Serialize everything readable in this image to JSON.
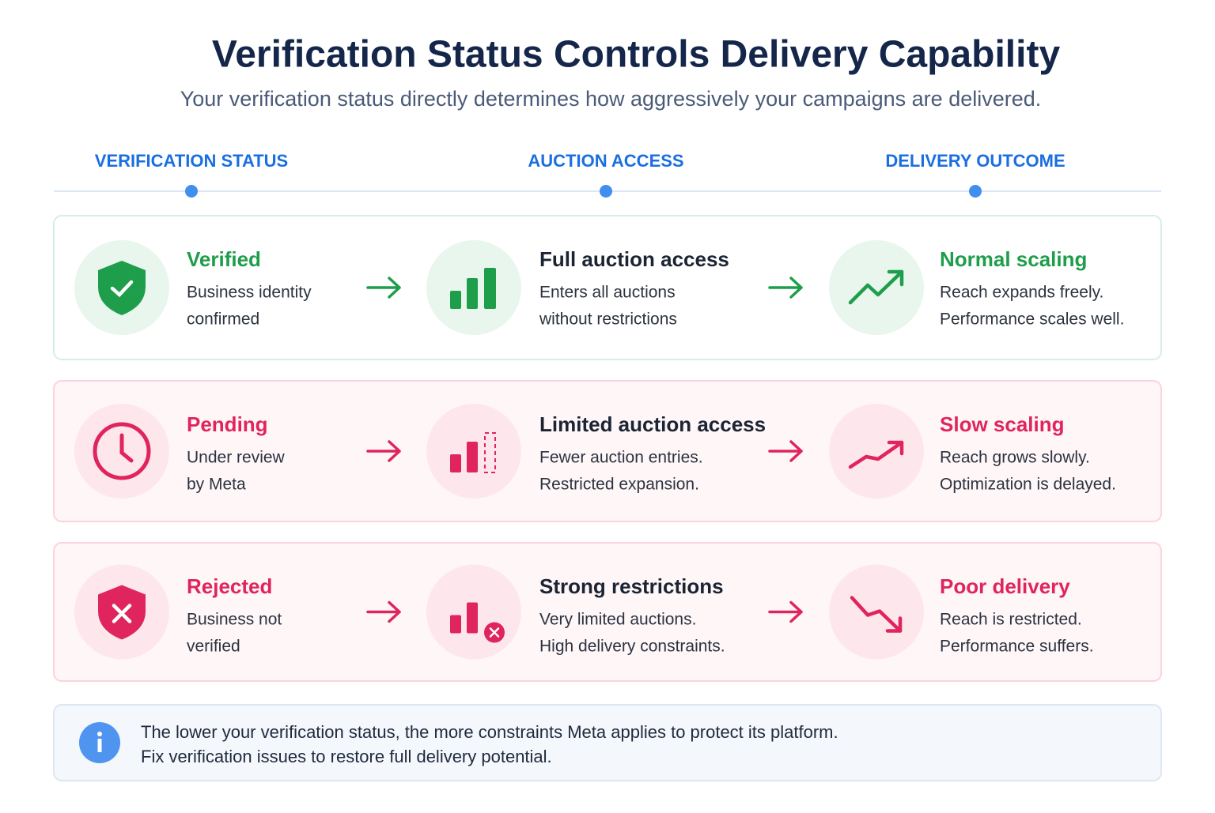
{
  "header": {
    "title": "Verification Status Controls Delivery Capability",
    "subtitle": "Your verification status directly determines how aggressively your campaigns are delivered."
  },
  "columns": [
    "VERIFICATION STATUS",
    "AUCTION ACCESS",
    "DELIVERY OUTCOME"
  ],
  "rows": [
    {
      "cells": [
        {
          "title": "Verified",
          "lines": [
            "Business identity",
            "confirmed"
          ]
        },
        {
          "title": "Full auction access",
          "lines": [
            "Enters all auctions",
            "without restrictions"
          ]
        },
        {
          "title": "Normal scaling",
          "lines": [
            "Reach expands freely.",
            "Performance scales well."
          ]
        }
      ]
    },
    {
      "cells": [
        {
          "title": "Pending",
          "lines": [
            "Under review",
            "by Meta"
          ]
        },
        {
          "title": "Limited auction access",
          "lines": [
            "Fewer auction entries.",
            "Restricted expansion."
          ]
        },
        {
          "title": "Slow scaling",
          "lines": [
            "Reach grows slowly.",
            "Optimization is delayed."
          ]
        }
      ]
    },
    {
      "cells": [
        {
          "title": "Rejected",
          "lines": [
            "Business not",
            "verified"
          ]
        },
        {
          "title": "Strong restrictions",
          "lines": [
            "Very limited auctions.",
            "High delivery constraints."
          ]
        },
        {
          "title": "Poor delivery",
          "lines": [
            "Reach is restricted.",
            "Performance suffers."
          ]
        }
      ]
    }
  ],
  "note": {
    "lines": [
      "The lower your verification status, the more constraints Meta applies to protect its platform.",
      "Fix verification issues to restore full delivery potential."
    ]
  }
}
